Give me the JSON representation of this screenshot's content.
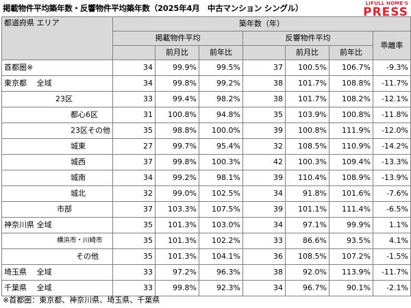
{
  "title": "掲載物件平均築年数・反響物件平均築年数（2025年4月　中古マンション シングル）",
  "brand": {
    "small": "LIFULL HOME'S",
    "big": "PRESS",
    "color": "#e8202a"
  },
  "header": {
    "area_label": "都道府県 エリア",
    "unit_label": "築年数（年）",
    "listing_group": "掲載物件平均",
    "response_group": "反響物件平均",
    "mom": "前月比",
    "yoy": "前年比",
    "divergence": "乖離率"
  },
  "rows": [
    {
      "area": "首都圏※",
      "indent": 0,
      "listing_age": "34",
      "listing_mom": "99.9%",
      "listing_yoy": "99.5%",
      "response_age": "37",
      "response_mom": "100.5%",
      "response_yoy": "106.7%",
      "divergence": "-9.3%",
      "group_start": true
    },
    {
      "area": "東京都　 全域",
      "indent": 0,
      "listing_age": "34",
      "listing_mom": "99.8%",
      "listing_yoy": "99.2%",
      "response_age": "38",
      "response_mom": "101.7%",
      "response_yoy": "108.8%",
      "divergence": "-11.7%",
      "group_start": true
    },
    {
      "area": "23区",
      "indent": 1,
      "listing_age": "33",
      "listing_mom": "99.4%",
      "listing_yoy": "98.2%",
      "response_age": "38",
      "response_mom": "101.7%",
      "response_yoy": "108.2%",
      "divergence": "-12.1%"
    },
    {
      "area": "都心6区",
      "indent": 2,
      "listing_age": "31",
      "listing_mom": "100.8%",
      "listing_yoy": "94.8%",
      "response_age": "35",
      "response_mom": "103.9%",
      "response_yoy": "100.8%",
      "divergence": "-11.8%"
    },
    {
      "area": "23区その他",
      "indent": 2,
      "listing_age": "35",
      "listing_mom": "98.8%",
      "listing_yoy": "100.0%",
      "response_age": "39",
      "response_mom": "100.8%",
      "response_yoy": "111.9%",
      "divergence": "-12.0%"
    },
    {
      "area": "城東",
      "indent": 2,
      "listing_age": "27",
      "listing_mom": "99.7%",
      "listing_yoy": "95.4%",
      "response_age": "32",
      "response_mom": "108.5%",
      "response_yoy": "110.9%",
      "divergence": "-14.2%"
    },
    {
      "area": "城西",
      "indent": 2,
      "listing_age": "37",
      "listing_mom": "99.8%",
      "listing_yoy": "100.3%",
      "response_age": "42",
      "response_mom": "100.3%",
      "response_yoy": "109.4%",
      "divergence": "-13.3%"
    },
    {
      "area": "城南",
      "indent": 2,
      "listing_age": "34",
      "listing_mom": "99.2%",
      "listing_yoy": "98.1%",
      "response_age": "39",
      "response_mom": "110.4%",
      "response_yoy": "108.9%",
      "divergence": "-13.9%"
    },
    {
      "area": "城北",
      "indent": 2,
      "listing_age": "32",
      "listing_mom": "99.0%",
      "listing_yoy": "102.5%",
      "response_age": "34",
      "response_mom": "91.8%",
      "response_yoy": "101.6%",
      "divergence": "-7.6%"
    },
    {
      "area": "市部",
      "indent": 3,
      "listing_age": "37",
      "listing_mom": "103.3%",
      "listing_yoy": "107.5%",
      "response_age": "39",
      "response_mom": "101.1%",
      "response_yoy": "111.4%",
      "divergence": "-6.5%"
    },
    {
      "area": "神奈川県 全域",
      "indent": 0,
      "listing_age": "35",
      "listing_mom": "101.3%",
      "listing_yoy": "103.0%",
      "response_age": "34",
      "response_mom": "97.1%",
      "response_yoy": "99.9%",
      "divergence": "1.1%",
      "group_start": true
    },
    {
      "area": "横浜市・川崎市",
      "indent": 4,
      "listing_age": "35",
      "listing_mom": "101.3%",
      "listing_yoy": "102.2%",
      "response_age": "33",
      "response_mom": "86.6%",
      "response_yoy": "93.5%",
      "divergence": "4.1%"
    },
    {
      "area": "その他",
      "indent": 5,
      "listing_age": "35",
      "listing_mom": "101.3%",
      "listing_yoy": "104.1%",
      "response_age": "36",
      "response_mom": "108.5%",
      "response_yoy": "107.2%",
      "divergence": "-1.5%"
    },
    {
      "area": "埼玉県　 全域",
      "indent": 0,
      "listing_age": "33",
      "listing_mom": "97.2%",
      "listing_yoy": "96.3%",
      "response_age": "38",
      "response_mom": "92.0%",
      "response_yoy": "113.9%",
      "divergence": "-11.7%",
      "group_start": true
    },
    {
      "area": "千葉県　 全域",
      "indent": 0,
      "listing_age": "33",
      "listing_mom": "99.8%",
      "listing_yoy": "92.3%",
      "response_age": "34",
      "response_mom": "96.7%",
      "response_yoy": "90.1%",
      "divergence": "-2.1%",
      "group_start": true
    }
  ],
  "footnote": "※首都圏：東京都、神奈川県、埼玉県、千葉県"
}
